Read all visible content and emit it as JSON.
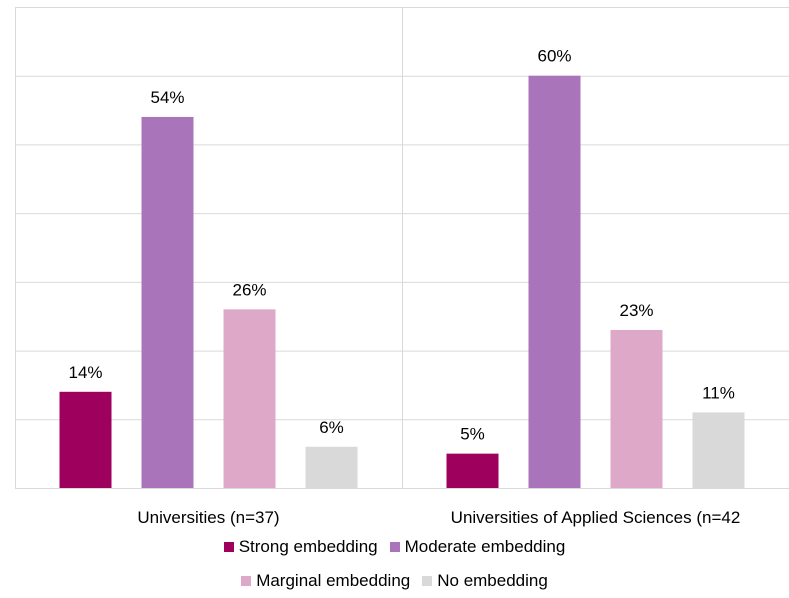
{
  "chart_data": {
    "type": "bar",
    "categories": [
      "Universities (n=37)",
      "Universities of Applied Sciences (n=42"
    ],
    "series": [
      {
        "name": "Strong embedding",
        "color": "#9e005d",
        "values": [
          14,
          5
        ],
        "labels": [
          "14%",
          "5%"
        ]
      },
      {
        "name": "Moderate embedding",
        "color": "#a974b9",
        "values": [
          54,
          60
        ],
        "labels": [
          "54%",
          "60%"
        ]
      },
      {
        "name": "Marginal embedding",
        "color": "#dea8c9",
        "values": [
          26,
          23
        ],
        "labels": [
          "26%",
          "23%"
        ]
      },
      {
        "name": "No embedding",
        "color": "#d9d9d9",
        "values": [
          6,
          11
        ],
        "labels": [
          "6%",
          "11%"
        ]
      }
    ],
    "ylim": [
      0,
      70
    ],
    "grid": true,
    "legend": "bottom"
  }
}
